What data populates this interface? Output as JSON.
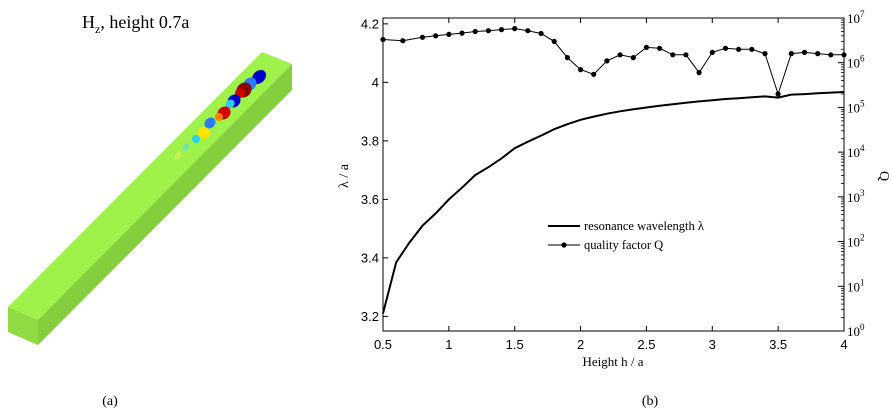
{
  "panel_a": {
    "title_main": "H",
    "title_sub": "z",
    "title_rest": ", height 0.7a",
    "caption": "(a)",
    "slab_color": "#9ef24a",
    "field_colors": [
      "#0000cc",
      "#2a7bff",
      "#25d0e8",
      "#ffe600",
      "#ff8000",
      "#d00000",
      "#8b0000"
    ]
  },
  "panel_b": {
    "caption": "(b)"
  },
  "chart_data": {
    "type": "line",
    "xlabel": "Height h / a",
    "ylabel_left": "λ / a",
    "ylabel_right": "Q",
    "xlim": [
      0.5,
      4
    ],
    "ylim_left": [
      3.15,
      4.22
    ],
    "ylim_right": [
      1,
      10000000
    ],
    "right_scale": "log",
    "x_ticks": [
      "0.5",
      "1",
      "1.5",
      "2",
      "2.5",
      "3",
      "3.5",
      "4"
    ],
    "y_left_ticks": [
      "3.2",
      "3.4",
      "3.6",
      "3.8",
      "4",
      "4.2"
    ],
    "y_right_ticks": [
      {
        "base": "10",
        "exp": "0",
        "value": 1
      },
      {
        "base": "10",
        "exp": "1",
        "value": 10
      },
      {
        "base": "10",
        "exp": "2",
        "value": 100
      },
      {
        "base": "10",
        "exp": "3",
        "value": 1000
      },
      {
        "base": "10",
        "exp": "4",
        "value": 10000
      },
      {
        "base": "10",
        "exp": "5",
        "value": 100000
      },
      {
        "base": "10",
        "exp": "6",
        "value": 1000000
      },
      {
        "base": "10",
        "exp": "7",
        "value": 10000000
      }
    ],
    "legend_placement": "center",
    "series": [
      {
        "name": "resonance wavelength λ",
        "axis": "left",
        "marker": "none",
        "x": [
          0.5,
          0.6,
          0.7,
          0.8,
          0.9,
          1.0,
          1.1,
          1.2,
          1.3,
          1.4,
          1.5,
          1.6,
          1.7,
          1.8,
          1.9,
          2.0,
          2.1,
          2.2,
          2.3,
          2.4,
          2.5,
          2.6,
          2.7,
          2.8,
          2.9,
          3.0,
          3.1,
          3.2,
          3.3,
          3.4,
          3.5,
          3.6,
          3.7,
          3.8,
          3.9,
          4.0
        ],
        "y": [
          3.21,
          3.385,
          3.452,
          3.51,
          3.552,
          3.6,
          3.64,
          3.683,
          3.71,
          3.74,
          3.775,
          3.797,
          3.818,
          3.84,
          3.857,
          3.872,
          3.883,
          3.893,
          3.901,
          3.908,
          3.914,
          3.92,
          3.925,
          3.93,
          3.935,
          3.939,
          3.943,
          3.946,
          3.949,
          3.952,
          3.948,
          3.958,
          3.96,
          3.963,
          3.965,
          3.967
        ]
      },
      {
        "name": "quality factor Q",
        "axis": "right",
        "marker": "circle",
        "x": [
          0.5,
          0.65,
          0.8,
          0.9,
          1.0,
          1.1,
          1.2,
          1.3,
          1.4,
          1.5,
          1.6,
          1.7,
          1.8,
          1.9,
          2.0,
          2.1,
          2.2,
          2.3,
          2.4,
          2.5,
          2.6,
          2.7,
          2.8,
          2.9,
          3.0,
          3.1,
          3.2,
          3.3,
          3.4,
          3.5,
          3.6,
          3.7,
          3.8,
          3.9,
          4.0
        ],
        "y": [
          3300000,
          3100000,
          3700000,
          4000000,
          4300000,
          4600000,
          5000000,
          5200000,
          5500000,
          5800000,
          5200000,
          4500000,
          3000000,
          1300000,
          700000,
          550000,
          1100000,
          1500000,
          1300000,
          2200000,
          2100000,
          1500000,
          1500000,
          600000,
          1700000,
          2100000,
          2000000,
          2000000,
          1600000,
          200000,
          1600000,
          1700000,
          1600000,
          1500000,
          1500000
        ]
      }
    ]
  }
}
